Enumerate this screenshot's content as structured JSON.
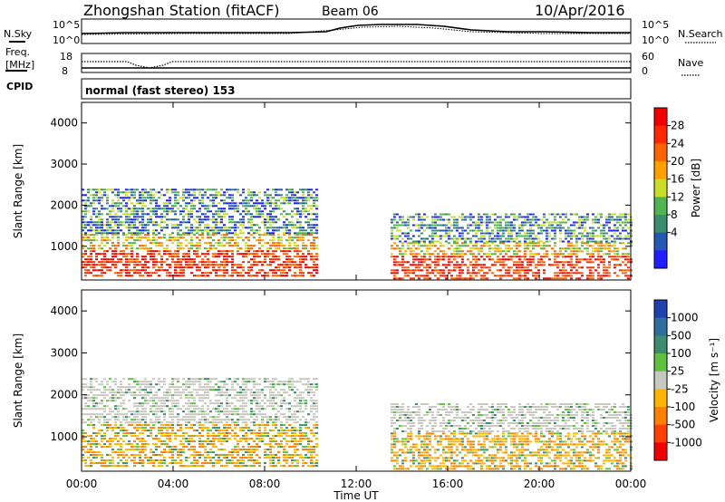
{
  "header": {
    "title": "Zhongshan Station (fitACF)",
    "beam": "Beam 06",
    "date": "10/Apr/2016"
  },
  "top_panel": {
    "left_label": "N.Sky",
    "left_ticks": [
      "10^5",
      "10^0"
    ],
    "right_label": "N.Search",
    "right_ticks": [
      "10^5",
      "10^0"
    ]
  },
  "mid_panel": {
    "left_label_1": "Freq.",
    "left_label_2": "[MHz]",
    "left_ticks": [
      "18",
      "8"
    ],
    "right_label": "Nave",
    "right_ticks": [
      "60",
      "0"
    ]
  },
  "cpid": {
    "label": "CPID",
    "value": "normal (fast stereo) 153"
  },
  "colors": {
    "power": [
      "#1e1eff",
      "#2458b4",
      "#3c8c6e",
      "#50b450",
      "#c8dc28",
      "#ffa000",
      "#ff6400",
      "#ff2800",
      "#f00000"
    ],
    "velocity": [
      "#2040b0",
      "#2e6e9e",
      "#3c8c6e",
      "#60c040",
      "#c8c8c0",
      "#ffb400",
      "#ff8000",
      "#ff4000",
      "#f00000"
    ]
  },
  "chart_data": [
    {
      "type": "heatmap",
      "quantity": "Power",
      "ylabel": "Slant Range [km]",
      "ylim": [
        180,
        4500
      ],
      "yticks": [
        1000,
        2000,
        3000,
        4000
      ],
      "xlim": [
        "00:00",
        "24:00"
      ],
      "xticks": [
        "00:00",
        "04:00",
        "08:00",
        "12:00",
        "16:00",
        "20:00",
        "00:00"
      ],
      "xlabel": "Time UT",
      "colorbar_label": "Power [dB]",
      "colorbar_ticks": [
        "28",
        "24",
        "20",
        "16",
        "12",
        "8",
        "4"
      ],
      "regions": [
        {
          "t": [
            0,
            10.3
          ],
          "range": [
            300,
            1300
          ],
          "level": "high"
        },
        {
          "t": [
            0,
            10.3
          ],
          "range": [
            1300,
            2400
          ],
          "level": "medium"
        },
        {
          "t": [
            13.5,
            24
          ],
          "range": [
            200,
            1100
          ],
          "level": "high"
        },
        {
          "t": [
            13.5,
            24
          ],
          "range": [
            1100,
            1800
          ],
          "level": "medium"
        }
      ]
    },
    {
      "type": "heatmap",
      "quantity": "Velocity",
      "ylabel": "Slant Range [km]",
      "ylim": [
        180,
        4500
      ],
      "yticks": [
        1000,
        2000,
        3000,
        4000
      ],
      "xlim": [
        "00:00",
        "24:00"
      ],
      "xticks": [
        "00:00",
        "04:00",
        "08:00",
        "12:00",
        "16:00",
        "20:00",
        "00:00"
      ],
      "xlabel": "Time UT",
      "colorbar_label": "Velocity [m s⁻¹]",
      "colorbar_ticks": [
        "1000",
        "500",
        "100",
        "25",
        "-25",
        "-100",
        "-500",
        "-1000"
      ],
      "regions": [
        {
          "t": [
            0,
            10.3
          ],
          "range": [
            300,
            1300
          ],
          "level": "negative"
        },
        {
          "t": [
            0,
            10.3
          ],
          "range": [
            1300,
            2400
          ],
          "level": "near-zero"
        },
        {
          "t": [
            13.5,
            24
          ],
          "range": [
            200,
            1100
          ],
          "level": "negative"
        },
        {
          "t": [
            13.5,
            24
          ],
          "range": [
            1100,
            1800
          ],
          "level": "near-zero"
        }
      ]
    }
  ]
}
